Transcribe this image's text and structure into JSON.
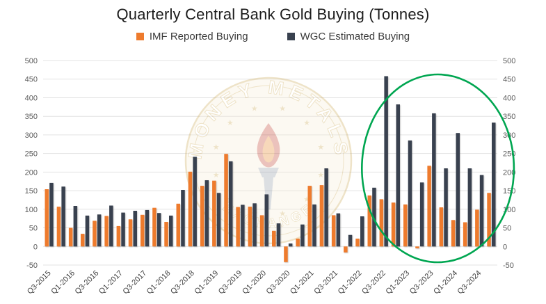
{
  "chart_data": {
    "type": "bar",
    "title": "Quarterly Central Bank Gold Buying (Tonnes)",
    "categories": [
      "Q3-2015",
      "Q4-2015",
      "Q1-2016",
      "Q2-2016",
      "Q3-2016",
      "Q4-2016",
      "Q1-2017",
      "Q2-2017",
      "Q3-2017",
      "Q4-2017",
      "Q1-2018",
      "Q2-2018",
      "Q3-2018",
      "Q4-2018",
      "Q1-2019",
      "Q2-2019",
      "Q3-2019",
      "Q4-2019",
      "Q1-2020",
      "Q2-2020",
      "Q3-2020",
      "Q4-2020",
      "Q1-2021",
      "Q2-2021",
      "Q3-2021",
      "Q4-2021",
      "Q1-2022",
      "Q2-2022",
      "Q3-2022",
      "Q4-2022",
      "Q1-2023",
      "Q2-2023",
      "Q3-2023",
      "Q4-2023",
      "Q1-2024",
      "Q2-2024",
      "Q3-2024",
      "Q4-2024"
    ],
    "series": [
      {
        "name": "IMF Reported Buying",
        "color": "#EE7B2D",
        "values": [
          154,
          107,
          50,
          34,
          69,
          82,
          55,
          73,
          85,
          104,
          66,
          115,
          201,
          163,
          177,
          249,
          106,
          107,
          84,
          42,
          -42,
          21,
          163,
          165,
          84,
          -16,
          21,
          137,
          127,
          118,
          113,
          -5,
          217,
          105,
          71,
          65,
          99,
          144
        ]
      },
      {
        "name": "WGC Estimated Buying",
        "color": "#39414F",
        "values": [
          171,
          161,
          109,
          83,
          86,
          110,
          91,
          96,
          98,
          90,
          83,
          152,
          241,
          178,
          144,
          229,
          112,
          116,
          140,
          62,
          8,
          59,
          113,
          210,
          89,
          31,
          81,
          158,
          458,
          382,
          285,
          172,
          358,
          210,
          305,
          210,
          192,
          333
        ]
      }
    ],
    "ylim": [
      -50,
      500
    ],
    "yticks": [
      500,
      450,
      400,
      350,
      300,
      250,
      200,
      150,
      100,
      50,
      0,
      -50
    ],
    "x_tick_every": 2,
    "grid": true,
    "legend_position": "top",
    "dual_y_axis_labels": true,
    "annotations": {
      "highlight_ellipse": {
        "color": "#00A651",
        "from_category": "Q3-2022",
        "to_category": "Q4-2024"
      },
      "watermark": {
        "text_top": "MONEY METALS",
        "text_bottom": "EXCHANGE",
        "ring_color": "#C9A44C",
        "flame_color": "#BE3A26"
      }
    }
  }
}
